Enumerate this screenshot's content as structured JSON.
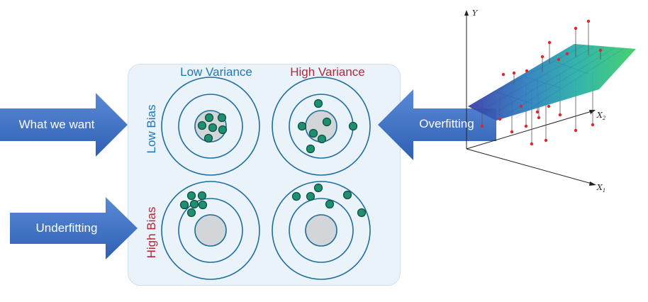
{
  "columns": {
    "low_variance": "Low Variance",
    "high_variance": "High Variance"
  },
  "rows": {
    "low_bias": "Low Bias",
    "high_bias": "High Bias"
  },
  "arrows": {
    "what_we_want": "What we want",
    "overfitting": "Overfitting",
    "underfitting": "Underfitting"
  },
  "axes": {
    "y": "Y",
    "x1": "X",
    "x1_sub": "1",
    "x2": "X",
    "x2_sub": "2"
  },
  "colors": {
    "blue_text": "#1f77b4",
    "red_text": "#b0283c",
    "arrow_fill": "#3f6ec3",
    "dot_fill": "#1f8f72",
    "ring": "#1f6e9c",
    "bullseye": "#d3d6d9"
  }
}
